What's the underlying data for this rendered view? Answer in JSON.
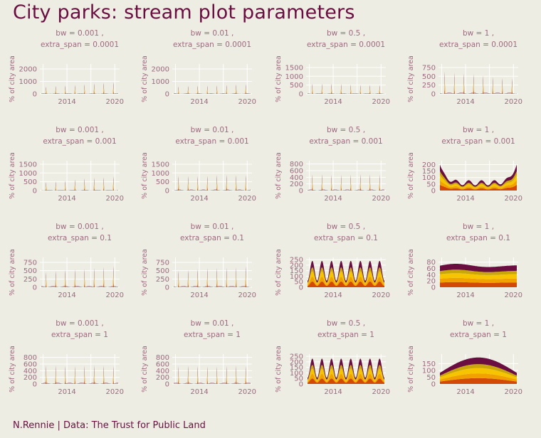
{
  "title": "City parks: stream plot parameters",
  "caption": "N.Rennie | Data: The Trust for Public Land",
  "colors": {
    "background": "#eeede3",
    "text": "#6a0e42",
    "axis_text": "#9c6a80",
    "grid": "#ffffff",
    "stream_layers": [
      "#d34a07",
      "#f2a200",
      "#f7c400",
      "#c9a60a",
      "#6a0e42"
    ]
  },
  "chart_data": {
    "type": "area",
    "ylabel": "% of city area",
    "x_tick_labels": [
      "2014",
      "2020"
    ],
    "panels": [
      {
        "bw_label": "bw =  0.001 ,",
        "span_label": "extra_span =  0.0001",
        "yticks": [
          "0",
          "1000",
          "2000"
        ],
        "ylim": [
          0,
          2400
        ],
        "shape": "spike",
        "peak": 1100,
        "trend": 1
      },
      {
        "bw_label": "bw =  0.01 ,",
        "span_label": "extra_span =  0.0001",
        "yticks": [
          "0",
          "1000",
          "2000"
        ],
        "ylim": [
          0,
          2400
        ],
        "shape": "spike",
        "peak": 1000,
        "trend": 0.5
      },
      {
        "bw_label": "bw =  0.5 ,",
        "span_label": "extra_span =  0.0001",
        "yticks": [
          "0",
          "500",
          "1000",
          "1500"
        ],
        "ylim": [
          0,
          1700
        ],
        "shape": "spike",
        "peak": 800,
        "trend": -0.4
      },
      {
        "bw_label": "bw =  1 ,",
        "span_label": "extra_span =  0.0001",
        "yticks": [
          "0",
          "250",
          "500",
          "750"
        ],
        "ylim": [
          0,
          850
        ],
        "shape": "spike",
        "peak": 780,
        "trend": -0.8
      },
      {
        "bw_label": "bw =  0.001 ,",
        "span_label": "extra_span =  0.001",
        "yticks": [
          "0",
          "500",
          "1000",
          "1500"
        ],
        "ylim": [
          0,
          1700
        ],
        "shape": "spike",
        "peak": 950,
        "trend": 1
      },
      {
        "bw_label": "bw =  0.01 ,",
        "span_label": "extra_span =  0.001",
        "yticks": [
          "0",
          "500",
          "1000",
          "1500"
        ],
        "ylim": [
          0,
          1700
        ],
        "shape": "spike",
        "peak": 1250,
        "trend": 0.2
      },
      {
        "bw_label": "bw =  0.5 ,",
        "span_label": "extra_span =  0.001",
        "yticks": [
          "0",
          "200",
          "400",
          "600",
          "800"
        ],
        "ylim": [
          0,
          900
        ],
        "shape": "spike",
        "peak": 700,
        "trend": 0
      },
      {
        "bw_label": "bw =  1 ,",
        "span_label": "extra_span =  0.001",
        "yticks": [
          "0",
          "50",
          "100",
          "150",
          "200"
        ],
        "ylim": [
          0,
          230
        ],
        "shape": "ushape",
        "peak": 200,
        "trend": 0
      },
      {
        "bw_label": "bw =  0.001 ,",
        "span_label": "extra_span =  0.1",
        "yticks": [
          "0",
          "250",
          "500",
          "750"
        ],
        "ylim": [
          0,
          900
        ],
        "shape": "spike",
        "peak": 800,
        "trend": 0.6
      },
      {
        "bw_label": "bw =  0.01 ,",
        "span_label": "extra_span =  0.1",
        "yticks": [
          "0",
          "250",
          "500",
          "750"
        ],
        "ylim": [
          0,
          900
        ],
        "shape": "spike",
        "peak": 830,
        "trend": 0.4
      },
      {
        "bw_label": "bw =  0.5 ,",
        "span_label": "extra_span =  0.1",
        "yticks": [
          "0",
          "50",
          "100",
          "150",
          "200",
          "250"
        ],
        "ylim": [
          0,
          270
        ],
        "shape": "wave",
        "peak": 240,
        "trend": 0
      },
      {
        "bw_label": "bw =  1 ,",
        "span_label": "extra_span =  0.1",
        "yticks": [
          "0",
          "20",
          "40",
          "60",
          "80"
        ],
        "ylim": [
          0,
          95
        ],
        "shape": "flat",
        "peak": 78,
        "trend": 0
      },
      {
        "bw_label": "bw =  0.001 ,",
        "span_label": "extra_span =  1",
        "yticks": [
          "0",
          "200",
          "400",
          "600",
          "800"
        ],
        "ylim": [
          0,
          900
        ],
        "shape": "spike",
        "peak": 800,
        "trend": 0
      },
      {
        "bw_label": "bw =  0.01 ,",
        "span_label": "extra_span =  1",
        "yticks": [
          "0",
          "200",
          "400",
          "600",
          "800"
        ],
        "ylim": [
          0,
          900
        ],
        "shape": "spike",
        "peak": 780,
        "trend": 0
      },
      {
        "bw_label": "bw =  0.5 ,",
        "span_label": "extra_span =  1",
        "yticks": [
          "0",
          "50",
          "100",
          "150",
          "200",
          "250"
        ],
        "ylim": [
          0,
          270
        ],
        "shape": "wave",
        "peak": 230,
        "trend": 0
      },
      {
        "bw_label": "bw =  1 ,",
        "span_label": "extra_span =  1",
        "yticks": [
          "0",
          "50",
          "100",
          "150"
        ],
        "ylim": [
          0,
          220
        ],
        "shape": "arch",
        "peak": 195,
        "trend": 0
      }
    ]
  }
}
